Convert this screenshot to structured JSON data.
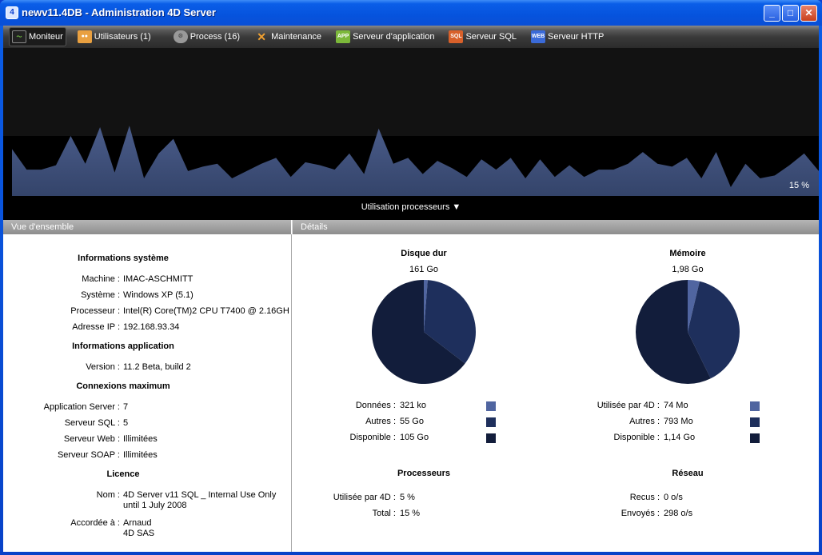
{
  "window": {
    "title": "newv11.4DB - Administration 4D Server",
    "minimize": "_",
    "maximize": "□",
    "close": "✕"
  },
  "toolbar": {
    "items": [
      {
        "label": "Moniteur",
        "icon": "monitor-icon",
        "active": true
      },
      {
        "label": "Utilisateurs (1)",
        "icon": "users-icon"
      },
      {
        "label": "Process (16)",
        "icon": "gear-icon"
      },
      {
        "label": "Maintenance",
        "icon": "tools-icon"
      },
      {
        "label": "Serveur d'application",
        "icon": "app-server-icon",
        "badge": "APP"
      },
      {
        "label": "Serveur SQL",
        "icon": "sql-server-icon",
        "badge": "SQL"
      },
      {
        "label": "Serveur HTTP",
        "icon": "http-server-icon",
        "badge": "WEB"
      }
    ]
  },
  "monitor": {
    "current": "15 %",
    "selector": "Utilisation processeurs ▼",
    "chart_data": {
      "type": "area",
      "ylim": [
        0,
        100
      ],
      "color": "#34446a",
      "values": [
        32,
        18,
        18,
        21,
        41,
        22,
        47,
        16,
        48,
        12,
        29,
        39,
        17,
        20,
        22,
        12,
        17,
        22,
        26,
        13,
        23,
        21,
        18,
        29,
        15,
        46,
        22,
        26,
        15,
        24,
        19,
        13,
        25,
        18,
        26,
        12,
        25,
        13,
        21,
        13,
        18,
        18,
        22,
        30,
        22,
        20,
        26,
        12,
        30,
        6,
        22,
        12,
        14,
        21,
        29,
        17
      ]
    }
  },
  "overview": {
    "header": "Vue d'ensemble",
    "system": {
      "title": "Informations système",
      "rows": [
        {
          "k": "Machine :",
          "v": "IMAC-ASCHMITT"
        },
        {
          "k": "Système :",
          "v": "Windows XP (5.1)"
        },
        {
          "k": "Processeur :",
          "v": "Intel(R) Core(TM)2 CPU T7400 @ 2.16GH"
        },
        {
          "k": "Adresse IP :",
          "v": "192.168.93.34"
        }
      ]
    },
    "application": {
      "title": "Informations application",
      "rows": [
        {
          "k": "Version :",
          "v": "11.2 Beta, build 2"
        }
      ]
    },
    "connections": {
      "title": "Connexions maximum",
      "rows": [
        {
          "k": "Application Server :",
          "v": "7"
        },
        {
          "k": "Serveur SQL :",
          "v": "5"
        },
        {
          "k": "Serveur Web :",
          "v": "Illimitées"
        },
        {
          "k": "Serveur SOAP :",
          "v": "Illimitées"
        }
      ]
    },
    "licence": {
      "title": "Licence",
      "rows": [
        {
          "k": "Nom :",
          "v": "4D Server v11 SQL _ Internal Use Only\nuntil 1 July 2008"
        },
        {
          "k": "Accordée à :",
          "v": "Arnaud\n4D SAS"
        }
      ]
    }
  },
  "details": {
    "header": "Détails",
    "disk": {
      "title": "Disque dur",
      "total": "161 Go",
      "slices": [
        {
          "k": "Données :",
          "v": "321 ko",
          "fraction": 0.012,
          "color": "#5065a0"
        },
        {
          "k": "Autres :",
          "v": "55 Go",
          "fraction": 0.342,
          "color": "#1e2f5c"
        },
        {
          "k": "Disponible :",
          "v": "105 Go",
          "fraction": 0.646,
          "color": "#121d3b"
        }
      ]
    },
    "memory": {
      "title": "Mémoire",
      "total": "1,98 Go",
      "slices": [
        {
          "k": "Utilisée par 4D :",
          "v": "74 Mo",
          "fraction": 0.037,
          "color": "#5065a0"
        },
        {
          "k": "Autres :",
          "v": "793 Mo",
          "fraction": 0.39,
          "color": "#1e2f5c"
        },
        {
          "k": "Disponible :",
          "v": "1,14 Go",
          "fraction": 0.573,
          "color": "#121d3b"
        }
      ]
    },
    "cpu": {
      "title": "Processeurs",
      "rows": [
        {
          "k": "Utilisée par 4D :",
          "v": "5 %"
        },
        {
          "k": "Total :",
          "v": "15 %"
        }
      ]
    },
    "network": {
      "title": "Réseau",
      "rows": [
        {
          "k": "Recus :",
          "v": "0 o/s"
        },
        {
          "k": "Envoyés :",
          "v": "298 o/s"
        }
      ]
    }
  }
}
